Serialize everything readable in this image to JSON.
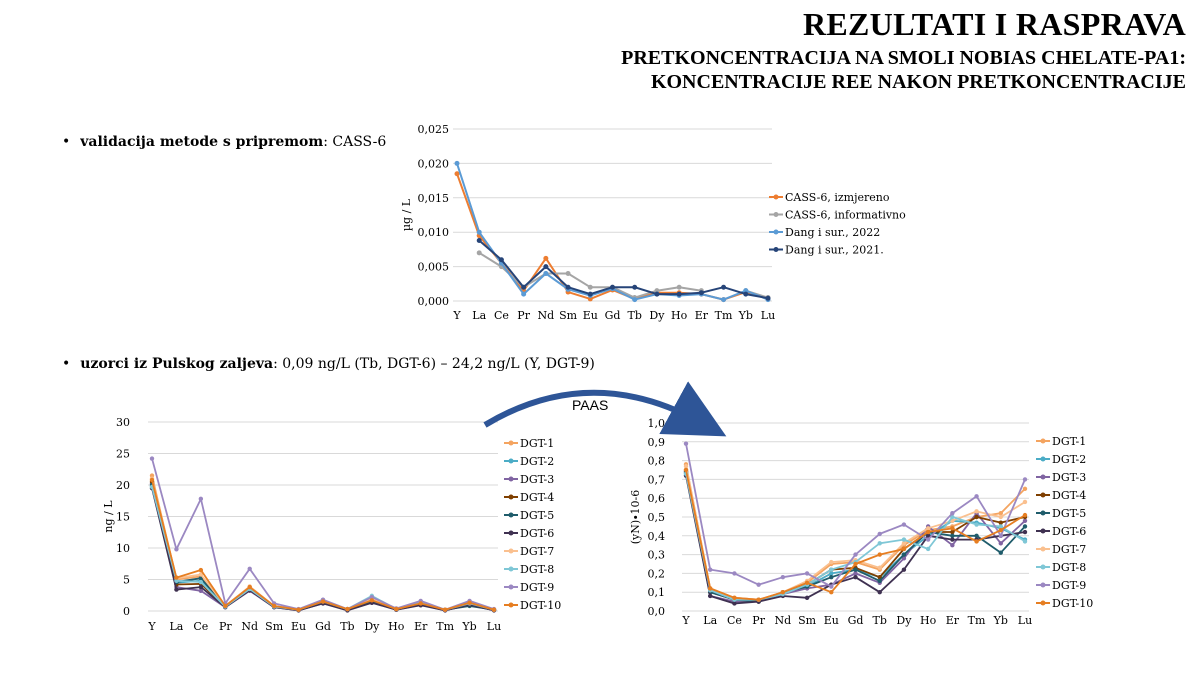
{
  "header": {
    "title": "REZULTATI I RASPRAVA",
    "subtitle_line1": "PRETKONCENTRACIJA NA SMOLI NOBIAS CHELATE-PA1:",
    "subtitle_line2": "KONCENTRACIJE REE NAKON PRETKONCENTRACIJE"
  },
  "bullets": {
    "b1_bold": "validacija metode s pripremom",
    "b1_text": ": CASS-6",
    "b2_bold": "uzorci iz Pulskog zaljeva",
    "b2_text": ": 0,09 ng/L (Tb, DGT-6) – 24,2 ng/L (Y, DGT-9)"
  },
  "arrow_label": "PAAS",
  "chart_data": [
    {
      "type": "line",
      "categories": [
        "Y",
        "La",
        "Ce",
        "Pr",
        "Nd",
        "Sm",
        "Eu",
        "Gd",
        "Tb",
        "Dy",
        "Ho",
        "Er",
        "Tm",
        "Yb",
        "Lu"
      ],
      "ylabel": "µg / L",
      "ylim": [
        0,
        0.025
      ],
      "yticks": [
        0,
        0.005,
        0.01,
        0.015,
        0.02,
        0.025
      ],
      "ytick_labels": [
        "0,000",
        "0,005",
        "0,010",
        "0,015",
        "0,020",
        "0,025"
      ],
      "grid": true,
      "legend": "right",
      "series": [
        {
          "name": "CASS-6, izmjereno",
          "color": "#ed7d31",
          "values": [
            0.0185,
            0.0095,
            0.0055,
            0.0015,
            0.0062,
            0.0013,
            0.0003,
            0.0016,
            0.0003,
            0.0012,
            0.0012,
            0.001,
            0.0002,
            0.0013,
            0.0003
          ]
        },
        {
          "name": "CASS-6, informativno",
          "color": "#a5a5a5",
          "values": [
            null,
            0.007,
            0.005,
            0.002,
            0.004,
            0.004,
            0.002,
            0.002,
            0.0005,
            0.0015,
            0.002,
            0.0015,
            null,
            0.0015,
            0.0005
          ]
        },
        {
          "name": "Dang i sur., 2022",
          "color": "#5b9bd5",
          "values": [
            0.02,
            0.01,
            0.0055,
            0.001,
            0.004,
            0.0017,
            0.0008,
            0.0018,
            0.0002,
            0.001,
            0.0008,
            0.001,
            0.0002,
            0.0015,
            0.0002
          ]
        },
        {
          "name": "Dang i sur., 2021.",
          "color": "#264478",
          "values": [
            null,
            0.0088,
            0.006,
            0.002,
            0.005,
            0.002,
            0.001,
            0.002,
            0.002,
            0.001,
            0.001,
            0.0012,
            0.002,
            0.001,
            0.0004
          ]
        }
      ]
    },
    {
      "type": "line",
      "categories": [
        "Y",
        "La",
        "Ce",
        "Pr",
        "Nd",
        "Sm",
        "Eu",
        "Gd",
        "Tb",
        "Dy",
        "Ho",
        "Er",
        "Tm",
        "Yb",
        "Lu"
      ],
      "ylabel": "ng / L",
      "ylim": [
        0,
        30
      ],
      "yticks": [
        0,
        5,
        10,
        15,
        20,
        25,
        30
      ],
      "ytick_labels": [
        "0",
        "5",
        "10",
        "15",
        "20",
        "25",
        "30"
      ],
      "grid": true,
      "legend": "right",
      "series": [
        {
          "name": "DGT-1",
          "color": "#f4a460",
          "values": [
            21.5,
            5.0,
            5.5,
            0.8,
            3.8,
            0.8,
            0.2,
            1.5,
            0.3,
            1.8,
            0.3,
            1.2,
            0.2,
            1.3,
            0.2
          ]
        },
        {
          "name": "DGT-2",
          "color": "#4bacc6",
          "values": [
            19.8,
            4.5,
            4.8,
            0.7,
            3.5,
            0.7,
            0.2,
            1.4,
            0.2,
            1.6,
            0.3,
            1.1,
            0.2,
            1.2,
            0.2
          ]
        },
        {
          "name": "DGT-3",
          "color": "#8064a2",
          "values": [
            20.2,
            3.8,
            3.2,
            0.6,
            3.2,
            0.6,
            0.1,
            1.2,
            0.2,
            1.4,
            0.2,
            1.0,
            0.1,
            1.0,
            0.1
          ]
        },
        {
          "name": "DGT-4",
          "color": "#7f3f00",
          "values": [
            20.5,
            4.2,
            4.3,
            0.7,
            3.6,
            0.7,
            0.2,
            1.3,
            0.2,
            1.5,
            0.3,
            1.0,
            0.2,
            1.1,
            0.2
          ]
        },
        {
          "name": "DGT-5",
          "color": "#1f5c6b",
          "values": [
            20.0,
            4.6,
            5.2,
            0.7,
            3.7,
            0.7,
            0.2,
            1.4,
            0.2,
            1.5,
            0.3,
            1.1,
            0.2,
            0.8,
            0.2
          ]
        },
        {
          "name": "DGT-6",
          "color": "#3f3151",
          "values": [
            19.5,
            3.4,
            3.8,
            0.6,
            3.3,
            0.6,
            0.1,
            1.2,
            0.09,
            1.3,
            0.2,
            0.9,
            0.1,
            1.0,
            0.1
          ]
        },
        {
          "name": "DGT-7",
          "color": "#fac08f",
          "values": [
            21.0,
            5.2,
            5.8,
            0.8,
            3.9,
            0.8,
            0.2,
            1.6,
            0.3,
            1.9,
            0.3,
            1.3,
            0.2,
            1.4,
            0.2
          ]
        },
        {
          "name": "DGT-8",
          "color": "#7fc7d6",
          "values": [
            19.7,
            4.8,
            4.6,
            0.7,
            3.5,
            0.7,
            0.2,
            1.5,
            0.3,
            2.4,
            0.3,
            1.5,
            0.2,
            1.2,
            0.2
          ]
        },
        {
          "name": "DGT-9",
          "color": "#9b88c2",
          "values": [
            24.2,
            9.8,
            17.8,
            1.2,
            6.7,
            1.2,
            0.3,
            1.8,
            0.3,
            2.2,
            0.4,
            1.6,
            0.2,
            1.6,
            0.3
          ]
        },
        {
          "name": "DGT-10",
          "color": "#e67e22",
          "values": [
            20.8,
            5.3,
            6.5,
            0.8,
            3.8,
            0.8,
            0.2,
            1.5,
            0.3,
            1.7,
            0.3,
            1.2,
            0.2,
            1.3,
            0.2
          ]
        }
      ]
    },
    {
      "type": "line",
      "categories": [
        "Y",
        "La",
        "Ce",
        "Pr",
        "Nd",
        "Sm",
        "Eu",
        "Gd",
        "Tb",
        "Dy",
        "Ho",
        "Er",
        "Tm",
        "Yb",
        "Lu"
      ],
      "ylabel": "(yN)∙10-6",
      "ylim": [
        0,
        1.0
      ],
      "yticks": [
        0,
        0.1,
        0.2,
        0.3,
        0.4,
        0.5,
        0.6,
        0.7,
        0.8,
        0.9,
        1.0
      ],
      "ytick_labels": [
        "0,0",
        "0,1",
        "0,2",
        "0,3",
        "0,4",
        "0,5",
        "0,6",
        "0,7",
        "0,8",
        "0,9",
        "1,0"
      ],
      "grid": true,
      "legend": "right",
      "series": [
        {
          "name": "DGT-1",
          "color": "#f4a460",
          "values": [
            0.78,
            0.12,
            0.07,
            0.06,
            0.1,
            0.15,
            0.25,
            0.26,
            0.22,
            0.35,
            0.43,
            0.45,
            0.5,
            0.52,
            0.65
          ]
        },
        {
          "name": "DGT-2",
          "color": "#4bacc6",
          "values": [
            0.73,
            0.1,
            0.06,
            0.05,
            0.09,
            0.13,
            0.2,
            0.22,
            0.18,
            0.3,
            0.4,
            0.48,
            0.47,
            0.44,
            0.38
          ]
        },
        {
          "name": "DGT-3",
          "color": "#8064a2",
          "values": [
            0.74,
            0.08,
            0.05,
            0.05,
            0.09,
            0.12,
            0.14,
            0.2,
            0.15,
            0.28,
            0.45,
            0.35,
            0.52,
            0.36,
            0.48
          ]
        },
        {
          "name": "DGT-4",
          "color": "#7f3f00",
          "values": [
            0.75,
            0.1,
            0.06,
            0.05,
            0.1,
            0.14,
            0.22,
            0.23,
            0.18,
            0.33,
            0.42,
            0.42,
            0.5,
            0.47,
            0.5
          ]
        },
        {
          "name": "DGT-5",
          "color": "#1f5c6b",
          "values": [
            0.74,
            0.1,
            0.06,
            0.05,
            0.1,
            0.13,
            0.18,
            0.22,
            0.16,
            0.3,
            0.42,
            0.4,
            0.4,
            0.31,
            0.45
          ]
        },
        {
          "name": "DGT-6",
          "color": "#3f3151",
          "values": [
            0.72,
            0.08,
            0.04,
            0.05,
            0.08,
            0.07,
            0.14,
            0.18,
            0.1,
            0.22,
            0.4,
            0.38,
            0.38,
            0.4,
            0.42
          ]
        },
        {
          "name": "DGT-7",
          "color": "#fac08f",
          "values": [
            0.77,
            0.12,
            0.07,
            0.06,
            0.1,
            0.16,
            0.26,
            0.27,
            0.23,
            0.36,
            0.44,
            0.48,
            0.53,
            0.5,
            0.58
          ]
        },
        {
          "name": "DGT-8",
          "color": "#7fc7d6",
          "values": [
            0.73,
            0.11,
            0.06,
            0.06,
            0.09,
            0.14,
            0.22,
            0.26,
            0.36,
            0.38,
            0.33,
            0.5,
            0.46,
            0.45,
            0.37
          ]
        },
        {
          "name": "DGT-9",
          "color": "#9b88c2",
          "values": [
            0.89,
            0.22,
            0.2,
            0.14,
            0.18,
            0.2,
            0.13,
            0.3,
            0.41,
            0.46,
            0.38,
            0.52,
            0.61,
            0.4,
            0.7
          ]
        },
        {
          "name": "DGT-10",
          "color": "#e67e22",
          "values": [
            0.75,
            0.12,
            0.07,
            0.06,
            0.1,
            0.15,
            0.1,
            0.25,
            0.3,
            0.33,
            0.42,
            0.44,
            0.37,
            0.43,
            0.51
          ]
        }
      ]
    }
  ]
}
